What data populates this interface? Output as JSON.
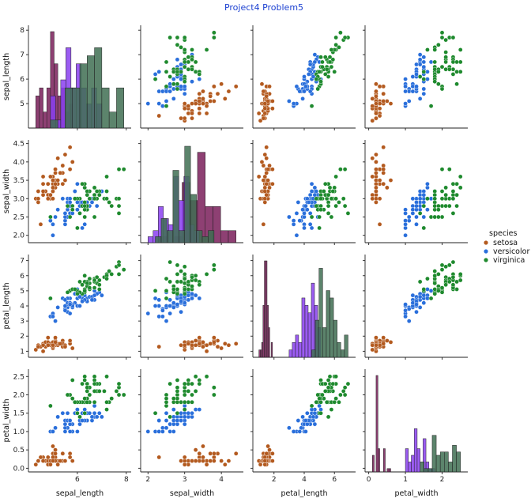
{
  "chart_data": {
    "type": "scatter",
    "title": "Project4 Problem5",
    "variables": [
      "sepal_length",
      "sepal_width",
      "petal_length",
      "petal_width"
    ],
    "variable_labels": [
      "sepal_length",
      "sepal_width",
      "petal_length",
      "petal_width"
    ],
    "ranges": {
      "sepal_length": [
        4.0,
        8.2
      ],
      "sepal_width": [
        1.8,
        4.6
      ],
      "petal_length": [
        0.6,
        7.4
      ],
      "petal_width": [
        -0.1,
        2.7
      ]
    },
    "ticks": {
      "sepal_length": [
        6,
        8
      ],
      "sepal_length_y": [
        5,
        6,
        7,
        8
      ],
      "sepal_width": [
        2,
        3,
        4
      ],
      "sepal_width_y": [
        2.0,
        2.5,
        3.0,
        3.5,
        4.0,
        4.5
      ],
      "petal_length": [
        2,
        4,
        6
      ],
      "petal_length_y": [
        1,
        2,
        3,
        4,
        5,
        6,
        7
      ],
      "petal_width": [
        0,
        1,
        2
      ],
      "petal_width_y": [
        0.0,
        0.5,
        1.0,
        1.5,
        2.0,
        2.5
      ]
    },
    "legend": {
      "title": "species",
      "position": "right",
      "entries": [
        "setosa",
        "versicolor",
        "virginica"
      ]
    },
    "colors": {
      "setosa": "#b35a1f",
      "versicolor": "#2a6fdb",
      "virginica": "#1f8a2e"
    },
    "hist_colors": {
      "setosa": "#7a1f5a",
      "versicolor": "#8a3ff0",
      "virginica": "#3f6e52"
    },
    "series": [
      {
        "name": "setosa",
        "points": [
          [
            5.1,
            3.5,
            1.4,
            0.2
          ],
          [
            4.9,
            3.0,
            1.4,
            0.2
          ],
          [
            4.7,
            3.2,
            1.3,
            0.2
          ],
          [
            4.6,
            3.1,
            1.5,
            0.2
          ],
          [
            5.0,
            3.6,
            1.4,
            0.2
          ],
          [
            5.4,
            3.9,
            1.7,
            0.4
          ],
          [
            4.6,
            3.4,
            1.4,
            0.3
          ],
          [
            5.0,
            3.4,
            1.5,
            0.2
          ],
          [
            4.4,
            2.9,
            1.4,
            0.2
          ],
          [
            4.9,
            3.1,
            1.5,
            0.1
          ],
          [
            5.4,
            3.7,
            1.5,
            0.2
          ],
          [
            4.8,
            3.4,
            1.6,
            0.2
          ],
          [
            4.8,
            3.0,
            1.4,
            0.1
          ],
          [
            4.3,
            3.0,
            1.1,
            0.1
          ],
          [
            5.8,
            4.0,
            1.2,
            0.2
          ],
          [
            5.7,
            4.4,
            1.5,
            0.4
          ],
          [
            5.4,
            3.9,
            1.3,
            0.4
          ],
          [
            5.1,
            3.5,
            1.4,
            0.3
          ],
          [
            5.7,
            3.8,
            1.7,
            0.3
          ],
          [
            5.1,
            3.8,
            1.5,
            0.3
          ],
          [
            5.4,
            3.4,
            1.7,
            0.2
          ],
          [
            5.1,
            3.7,
            1.5,
            0.4
          ],
          [
            4.6,
            3.6,
            1.0,
            0.2
          ],
          [
            5.1,
            3.3,
            1.7,
            0.5
          ],
          [
            4.8,
            3.4,
            1.9,
            0.2
          ],
          [
            5.0,
            3.0,
            1.6,
            0.2
          ],
          [
            5.0,
            3.4,
            1.6,
            0.4
          ],
          [
            5.2,
            3.5,
            1.5,
            0.2
          ],
          [
            5.2,
            3.4,
            1.4,
            0.2
          ],
          [
            4.7,
            3.2,
            1.6,
            0.2
          ],
          [
            4.8,
            3.1,
            1.6,
            0.2
          ],
          [
            5.4,
            3.4,
            1.5,
            0.4
          ],
          [
            5.2,
            4.1,
            1.5,
            0.1
          ],
          [
            5.5,
            4.2,
            1.4,
            0.2
          ],
          [
            4.9,
            3.1,
            1.5,
            0.2
          ],
          [
            5.0,
            3.2,
            1.2,
            0.2
          ],
          [
            5.5,
            3.5,
            1.3,
            0.2
          ],
          [
            4.9,
            3.6,
            1.4,
            0.1
          ],
          [
            4.4,
            3.0,
            1.3,
            0.2
          ],
          [
            5.1,
            3.4,
            1.5,
            0.2
          ],
          [
            5.0,
            3.5,
            1.3,
            0.3
          ],
          [
            4.5,
            2.3,
            1.3,
            0.3
          ],
          [
            4.4,
            3.2,
            1.3,
            0.2
          ],
          [
            5.0,
            3.5,
            1.6,
            0.6
          ],
          [
            5.1,
            3.8,
            1.9,
            0.4
          ],
          [
            4.8,
            3.0,
            1.4,
            0.3
          ],
          [
            5.1,
            3.8,
            1.6,
            0.2
          ],
          [
            4.6,
            3.2,
            1.4,
            0.2
          ],
          [
            5.3,
            3.7,
            1.5,
            0.2
          ],
          [
            5.0,
            3.3,
            1.4,
            0.2
          ]
        ]
      },
      {
        "name": "versicolor",
        "points": [
          [
            7.0,
            3.2,
            4.7,
            1.4
          ],
          [
            6.4,
            3.2,
            4.5,
            1.5
          ],
          [
            6.9,
            3.1,
            4.9,
            1.5
          ],
          [
            5.5,
            2.3,
            4.0,
            1.3
          ],
          [
            6.5,
            2.8,
            4.6,
            1.5
          ],
          [
            5.7,
            2.8,
            4.5,
            1.3
          ],
          [
            6.3,
            3.3,
            4.7,
            1.6
          ],
          [
            4.9,
            2.4,
            3.3,
            1.0
          ],
          [
            6.6,
            2.9,
            4.6,
            1.3
          ],
          [
            5.2,
            2.7,
            3.9,
            1.4
          ],
          [
            5.0,
            2.0,
            3.5,
            1.0
          ],
          [
            5.9,
            3.0,
            4.2,
            1.5
          ],
          [
            6.0,
            2.2,
            4.0,
            1.0
          ],
          [
            6.1,
            2.9,
            4.7,
            1.4
          ],
          [
            5.6,
            2.9,
            3.6,
            1.3
          ],
          [
            6.7,
            3.1,
            4.4,
            1.4
          ],
          [
            5.6,
            3.0,
            4.5,
            1.5
          ],
          [
            5.8,
            2.7,
            4.1,
            1.0
          ],
          [
            6.2,
            2.2,
            4.5,
            1.5
          ],
          [
            5.6,
            2.5,
            3.9,
            1.1
          ],
          [
            5.9,
            3.2,
            4.8,
            1.8
          ],
          [
            6.1,
            2.8,
            4.0,
            1.3
          ],
          [
            6.3,
            2.5,
            4.9,
            1.5
          ],
          [
            6.1,
            2.8,
            4.7,
            1.2
          ],
          [
            6.4,
            2.9,
            4.3,
            1.3
          ],
          [
            6.6,
            3.0,
            4.4,
            1.4
          ],
          [
            6.8,
            2.8,
            4.8,
            1.4
          ],
          [
            6.7,
            3.0,
            5.0,
            1.7
          ],
          [
            6.0,
            2.9,
            4.5,
            1.5
          ],
          [
            5.7,
            2.6,
            3.5,
            1.0
          ],
          [
            5.5,
            2.4,
            3.8,
            1.1
          ],
          [
            5.5,
            2.4,
            3.7,
            1.0
          ],
          [
            5.8,
            2.7,
            3.9,
            1.2
          ],
          [
            6.0,
            2.7,
            5.1,
            1.6
          ],
          [
            5.4,
            3.0,
            4.5,
            1.5
          ],
          [
            6.0,
            3.4,
            4.5,
            1.6
          ],
          [
            6.7,
            3.1,
            4.7,
            1.5
          ],
          [
            6.3,
            2.3,
            4.4,
            1.3
          ],
          [
            5.6,
            3.0,
            4.1,
            1.3
          ],
          [
            5.5,
            2.5,
            4.0,
            1.3
          ],
          [
            5.5,
            2.6,
            4.4,
            1.2
          ],
          [
            6.1,
            3.0,
            4.6,
            1.4
          ],
          [
            5.8,
            2.6,
            4.0,
            1.2
          ],
          [
            5.0,
            2.3,
            3.3,
            1.0
          ],
          [
            5.6,
            2.7,
            4.2,
            1.3
          ],
          [
            5.7,
            3.0,
            4.2,
            1.2
          ],
          [
            5.7,
            2.9,
            4.2,
            1.3
          ],
          [
            6.2,
            2.9,
            4.3,
            1.3
          ],
          [
            5.1,
            2.5,
            3.0,
            1.1
          ],
          [
            5.7,
            2.8,
            4.1,
            1.3
          ]
        ]
      },
      {
        "name": "virginica",
        "points": [
          [
            6.3,
            3.3,
            6.0,
            2.5
          ],
          [
            5.8,
            2.7,
            5.1,
            1.9
          ],
          [
            7.1,
            3.0,
            5.9,
            2.1
          ],
          [
            6.3,
            2.9,
            5.6,
            1.8
          ],
          [
            6.5,
            3.0,
            5.8,
            2.2
          ],
          [
            7.6,
            3.0,
            6.6,
            2.1
          ],
          [
            4.9,
            2.5,
            4.5,
            1.7
          ],
          [
            7.3,
            2.9,
            6.3,
            1.8
          ],
          [
            6.7,
            2.5,
            5.8,
            1.8
          ],
          [
            7.2,
            3.6,
            6.1,
            2.5
          ],
          [
            6.5,
            3.2,
            5.1,
            2.0
          ],
          [
            6.4,
            2.7,
            5.3,
            1.9
          ],
          [
            6.8,
            3.0,
            5.5,
            2.1
          ],
          [
            5.7,
            2.5,
            5.0,
            2.0
          ],
          [
            5.8,
            2.8,
            5.1,
            2.4
          ],
          [
            6.4,
            3.2,
            5.3,
            2.3
          ],
          [
            6.5,
            3.0,
            5.5,
            1.8
          ],
          [
            7.7,
            3.8,
            6.7,
            2.2
          ],
          [
            7.7,
            2.6,
            6.9,
            2.3
          ],
          [
            6.0,
            2.2,
            5.0,
            1.5
          ],
          [
            6.9,
            3.2,
            5.7,
            2.3
          ],
          [
            5.6,
            2.8,
            4.9,
            2.0
          ],
          [
            7.7,
            2.8,
            6.7,
            2.0
          ],
          [
            6.3,
            2.7,
            4.9,
            1.8
          ],
          [
            6.7,
            3.3,
            5.7,
            2.1
          ],
          [
            7.2,
            3.2,
            6.0,
            1.8
          ],
          [
            6.2,
            2.8,
            4.8,
            1.8
          ],
          [
            6.1,
            3.0,
            4.9,
            1.8
          ],
          [
            6.4,
            2.8,
            5.6,
            2.1
          ],
          [
            7.2,
            3.0,
            5.8,
            1.6
          ],
          [
            7.4,
            2.8,
            6.1,
            1.9
          ],
          [
            7.9,
            3.8,
            6.4,
            2.0
          ],
          [
            6.4,
            2.8,
            5.6,
            2.2
          ],
          [
            6.3,
            2.8,
            5.1,
            1.5
          ],
          [
            6.1,
            2.6,
            5.6,
            1.4
          ],
          [
            7.7,
            3.0,
            6.1,
            2.3
          ],
          [
            6.3,
            3.4,
            5.6,
            2.4
          ],
          [
            6.4,
            3.1,
            5.5,
            1.8
          ],
          [
            6.0,
            3.0,
            4.8,
            1.8
          ],
          [
            6.9,
            3.1,
            5.4,
            2.1
          ],
          [
            6.7,
            3.1,
            5.6,
            2.4
          ],
          [
            6.9,
            3.1,
            5.1,
            2.3
          ],
          [
            5.8,
            2.7,
            5.1,
            1.9
          ],
          [
            6.8,
            3.2,
            5.9,
            2.3
          ],
          [
            6.7,
            3.3,
            5.7,
            2.5
          ],
          [
            6.7,
            3.0,
            5.2,
            2.3
          ],
          [
            6.3,
            2.5,
            5.0,
            1.9
          ],
          [
            6.5,
            3.0,
            5.2,
            2.0
          ],
          [
            6.2,
            3.4,
            5.4,
            2.3
          ],
          [
            5.9,
            3.0,
            5.1,
            1.8
          ]
        ]
      }
    ]
  }
}
